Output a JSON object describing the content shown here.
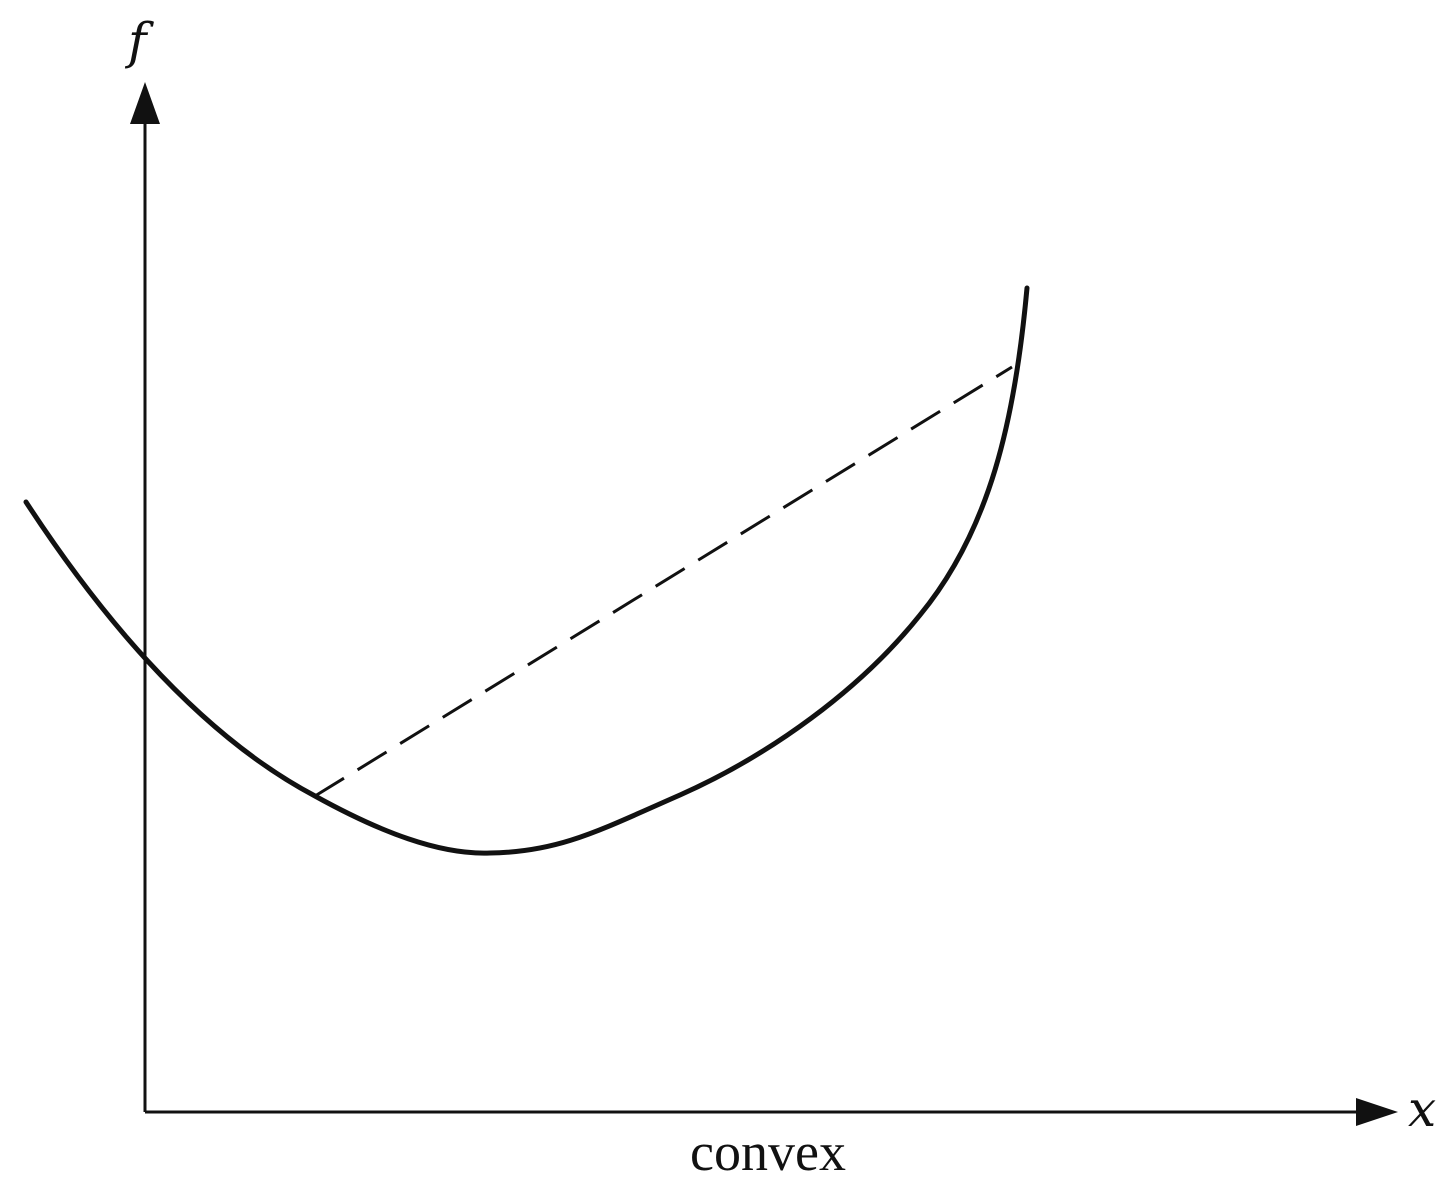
{
  "figure": {
    "y_axis_label": "f",
    "x_axis_label": "x",
    "caption": "convex"
  },
  "colors": {
    "ink": "#111111",
    "background": "#ffffff"
  }
}
